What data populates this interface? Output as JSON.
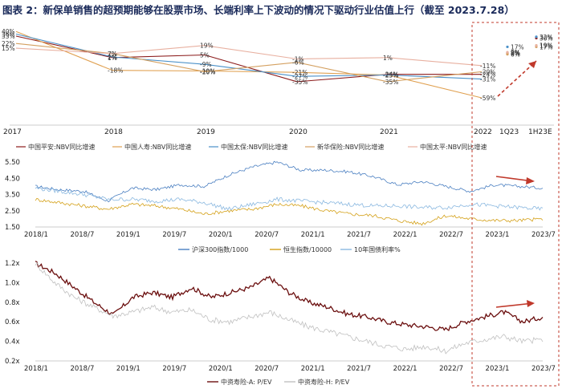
{
  "title": "图表 2：新保单销售的超预期能够在股票市场、长端利率上下波动的情况下驱动行业估值上行（截至 2023.7.28）",
  "colors": {
    "pingan": "#8b1a1a",
    "renshou": "#e0a050",
    "taibao": "#4a90c8",
    "xinhua": "#d4a060",
    "taiping": "#e8b0a0",
    "csi300": "#4a7fc1",
    "hsi": "#d4a017",
    "cgb": "#8ab8e0",
    "chinalife_a": "#6b0f0f",
    "chinalife_h": "#c0c0c0",
    "highlight": "#c0392b"
  },
  "chart_data": [
    {
      "type": "line",
      "id": "nbv",
      "categories": [
        "2017",
        "2018",
        "2019",
        "2020",
        "2021",
        "2022",
        "1Q23",
        "1H23E"
      ],
      "series": [
        {
          "name": "中国平安:NBV同比增速",
          "values": [
            33,
            1,
            5,
            -35,
            -24,
            -24,
            null,
            null
          ],
          "annotations": {
            "1Q23": 8,
            "1H23E": 30
          }
        },
        {
          "name": "中国人寿:NBV同比增速",
          "values": [
            40,
            -18,
            -19,
            -21,
            -25,
            -59,
            null,
            null
          ],
          "annotations": {
            "1Q23": 8,
            "1H23E": 19
          }
        },
        {
          "name": "中国太保:NBV同比增速",
          "values": [
            36,
            2,
            -9,
            -27,
            -25,
            -31,
            null,
            null
          ],
          "annotations": {
            "1Q23": 17,
            "1H23E": 32
          }
        },
        {
          "name": "新华保险:NBV同比增速",
          "values": [
            22,
            7,
            -20,
            -6,
            -35,
            -20,
            null,
            null
          ],
          "annotations": {
            "1Q23": 6,
            "1H23E": 17
          }
        },
        {
          "name": "中国太平:NBV同比增速",
          "values": [
            15,
            7,
            19,
            -1,
            1,
            -11,
            null,
            null
          ],
          "annotations": {
            "1Q23": 9,
            "1H23E": 19
          }
        }
      ],
      "xlabel": "",
      "ylabel": "",
      "ylim": [
        -65,
        45
      ]
    },
    {
      "type": "line",
      "id": "index",
      "x_ticks": [
        "2018/1",
        "2018/7",
        "2019/1",
        "2019/7",
        "2020/1",
        "2020/7",
        "2021/1",
        "2021/7",
        "2022/1",
        "2022/7",
        "2023/1",
        "2023/7"
      ],
      "y_ticks": [
        "5.50",
        "4.50",
        "3.50",
        "2.50",
        "1.50"
      ],
      "ylim": [
        1.5,
        5.7
      ],
      "series": [
        {
          "name": "沪深300指数/1000",
          "anchors": [
            4.0,
            3.8,
            3.7,
            3.1,
            3.9,
            3.8,
            4.1,
            4.0,
            4.7,
            5.2,
            5.5,
            5.0,
            5.0,
            4.9,
            4.6,
            4.1,
            4.3,
            4.0,
            3.7,
            4.1,
            4.0,
            3.9
          ]
        },
        {
          "name": "恒生指数/10000",
          "anchors": [
            3.2,
            3.0,
            2.8,
            2.6,
            2.9,
            2.8,
            2.6,
            2.3,
            2.5,
            2.6,
            2.9,
            2.8,
            2.5,
            2.3,
            2.2,
            1.9,
            1.7,
            2.2,
            2.0,
            1.9,
            1.9,
            2.0
          ]
        },
        {
          "name": "10年国债利率%",
          "anchors": [
            3.9,
            3.7,
            3.5,
            3.2,
            3.2,
            3.1,
            3.2,
            3.0,
            2.6,
            2.9,
            3.2,
            3.1,
            3.0,
            2.9,
            2.8,
            2.8,
            2.7,
            2.7,
            2.9,
            2.8,
            2.7,
            2.6
          ]
        }
      ]
    },
    {
      "type": "line",
      "id": "pev",
      "x_ticks": [
        "2018/1",
        "2018/7",
        "2019/1",
        "2019/7",
        "2020/1",
        "2020/7",
        "2021/1",
        "2021/7",
        "2022/1",
        "2022/7",
        "2023/1",
        "2023/7"
      ],
      "y_ticks": [
        "1.2x",
        "1.0x",
        "0.8x",
        "0.6x",
        "0.4x",
        "0.2x"
      ],
      "ylim": [
        0.2,
        1.25
      ],
      "series": [
        {
          "name": "中资寿险-A: P/EV",
          "anchors": [
            1.2,
            1.1,
            0.95,
            0.8,
            0.67,
            0.85,
            0.9,
            0.85,
            0.95,
            0.85,
            0.9,
            0.95,
            1.05,
            0.9,
            0.8,
            0.75,
            0.68,
            0.65,
            0.6,
            0.57,
            0.55,
            0.52,
            0.6,
            0.65,
            0.7,
            0.6,
            0.65
          ]
        },
        {
          "name": "中资寿险-H: P/EV",
          "anchors": [
            1.2,
            1.0,
            0.85,
            0.75,
            0.66,
            0.7,
            0.75,
            0.7,
            0.72,
            0.62,
            0.6,
            0.65,
            0.7,
            0.62,
            0.55,
            0.5,
            0.45,
            0.4,
            0.35,
            0.32,
            0.35,
            0.3,
            0.38,
            0.42,
            0.45,
            0.4,
            0.42
          ]
        }
      ]
    }
  ]
}
